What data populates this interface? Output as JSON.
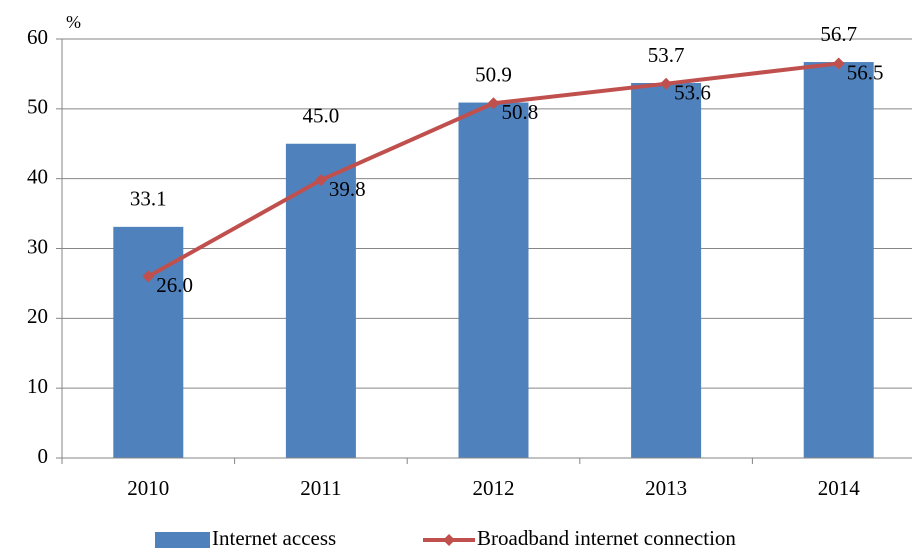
{
  "chart_data": {
    "type": "bar",
    "ylabel": "%",
    "categories": [
      "2010",
      "2011",
      "2012",
      "2013",
      "2014"
    ],
    "series": [
      {
        "name": "Internet access",
        "type": "bar",
        "color": "#4f81bd",
        "values": [
          33.1,
          45.0,
          50.9,
          53.7,
          56.7
        ],
        "value_labels": [
          "33.1",
          "45.0",
          "50.9",
          "53.7",
          "56.7"
        ]
      },
      {
        "name": "Broadband internet connection",
        "type": "line",
        "color": "#c0504d",
        "values": [
          26.0,
          39.8,
          50.8,
          53.6,
          56.5
        ],
        "value_labels": [
          "26.0",
          "39.8",
          "50.8",
          "53.6",
          "56.5"
        ]
      }
    ],
    "ylim": [
      0,
      60
    ],
    "yticks": [
      0,
      10,
      20,
      30,
      40,
      50,
      60
    ],
    "grid": true,
    "legend": "bottom"
  }
}
